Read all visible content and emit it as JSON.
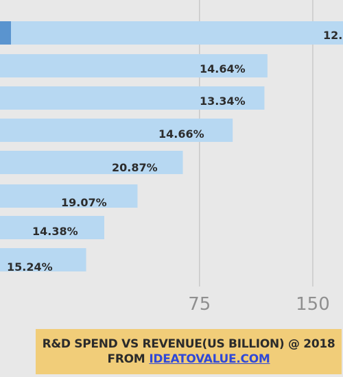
{
  "chart_data": {
    "type": "bar",
    "orientation": "horizontal",
    "series": [
      {
        "values": [
          170,
          120,
          118,
          97,
          64,
          34,
          12,
          0
        ],
        "labels": [
          "12.",
          "14.64%",
          "13.34%",
          "14.66%",
          "20.87%",
          "19.07%",
          "14.38%",
          "15.24%"
        ]
      }
    ],
    "x_ticks": [
      "75",
      "150"
    ],
    "x_tick_values": [
      75,
      150
    ],
    "xlim": [
      -57,
      170
    ],
    "grid": true,
    "colors": {
      "bar": "#b7d8f2",
      "bar_edge": "#a7cbe8",
      "accent_stub": "#5a94cf",
      "grid": "#c9c9c9",
      "label": "#2c2c2c",
      "tick": "#8f8f8f"
    }
  },
  "footer": {
    "line1": "R&D SPEND VS REVENUE(US BILLION) @ 2018",
    "line2_prefix": "FROM",
    "link": "IDEATOVALUE.COM"
  }
}
